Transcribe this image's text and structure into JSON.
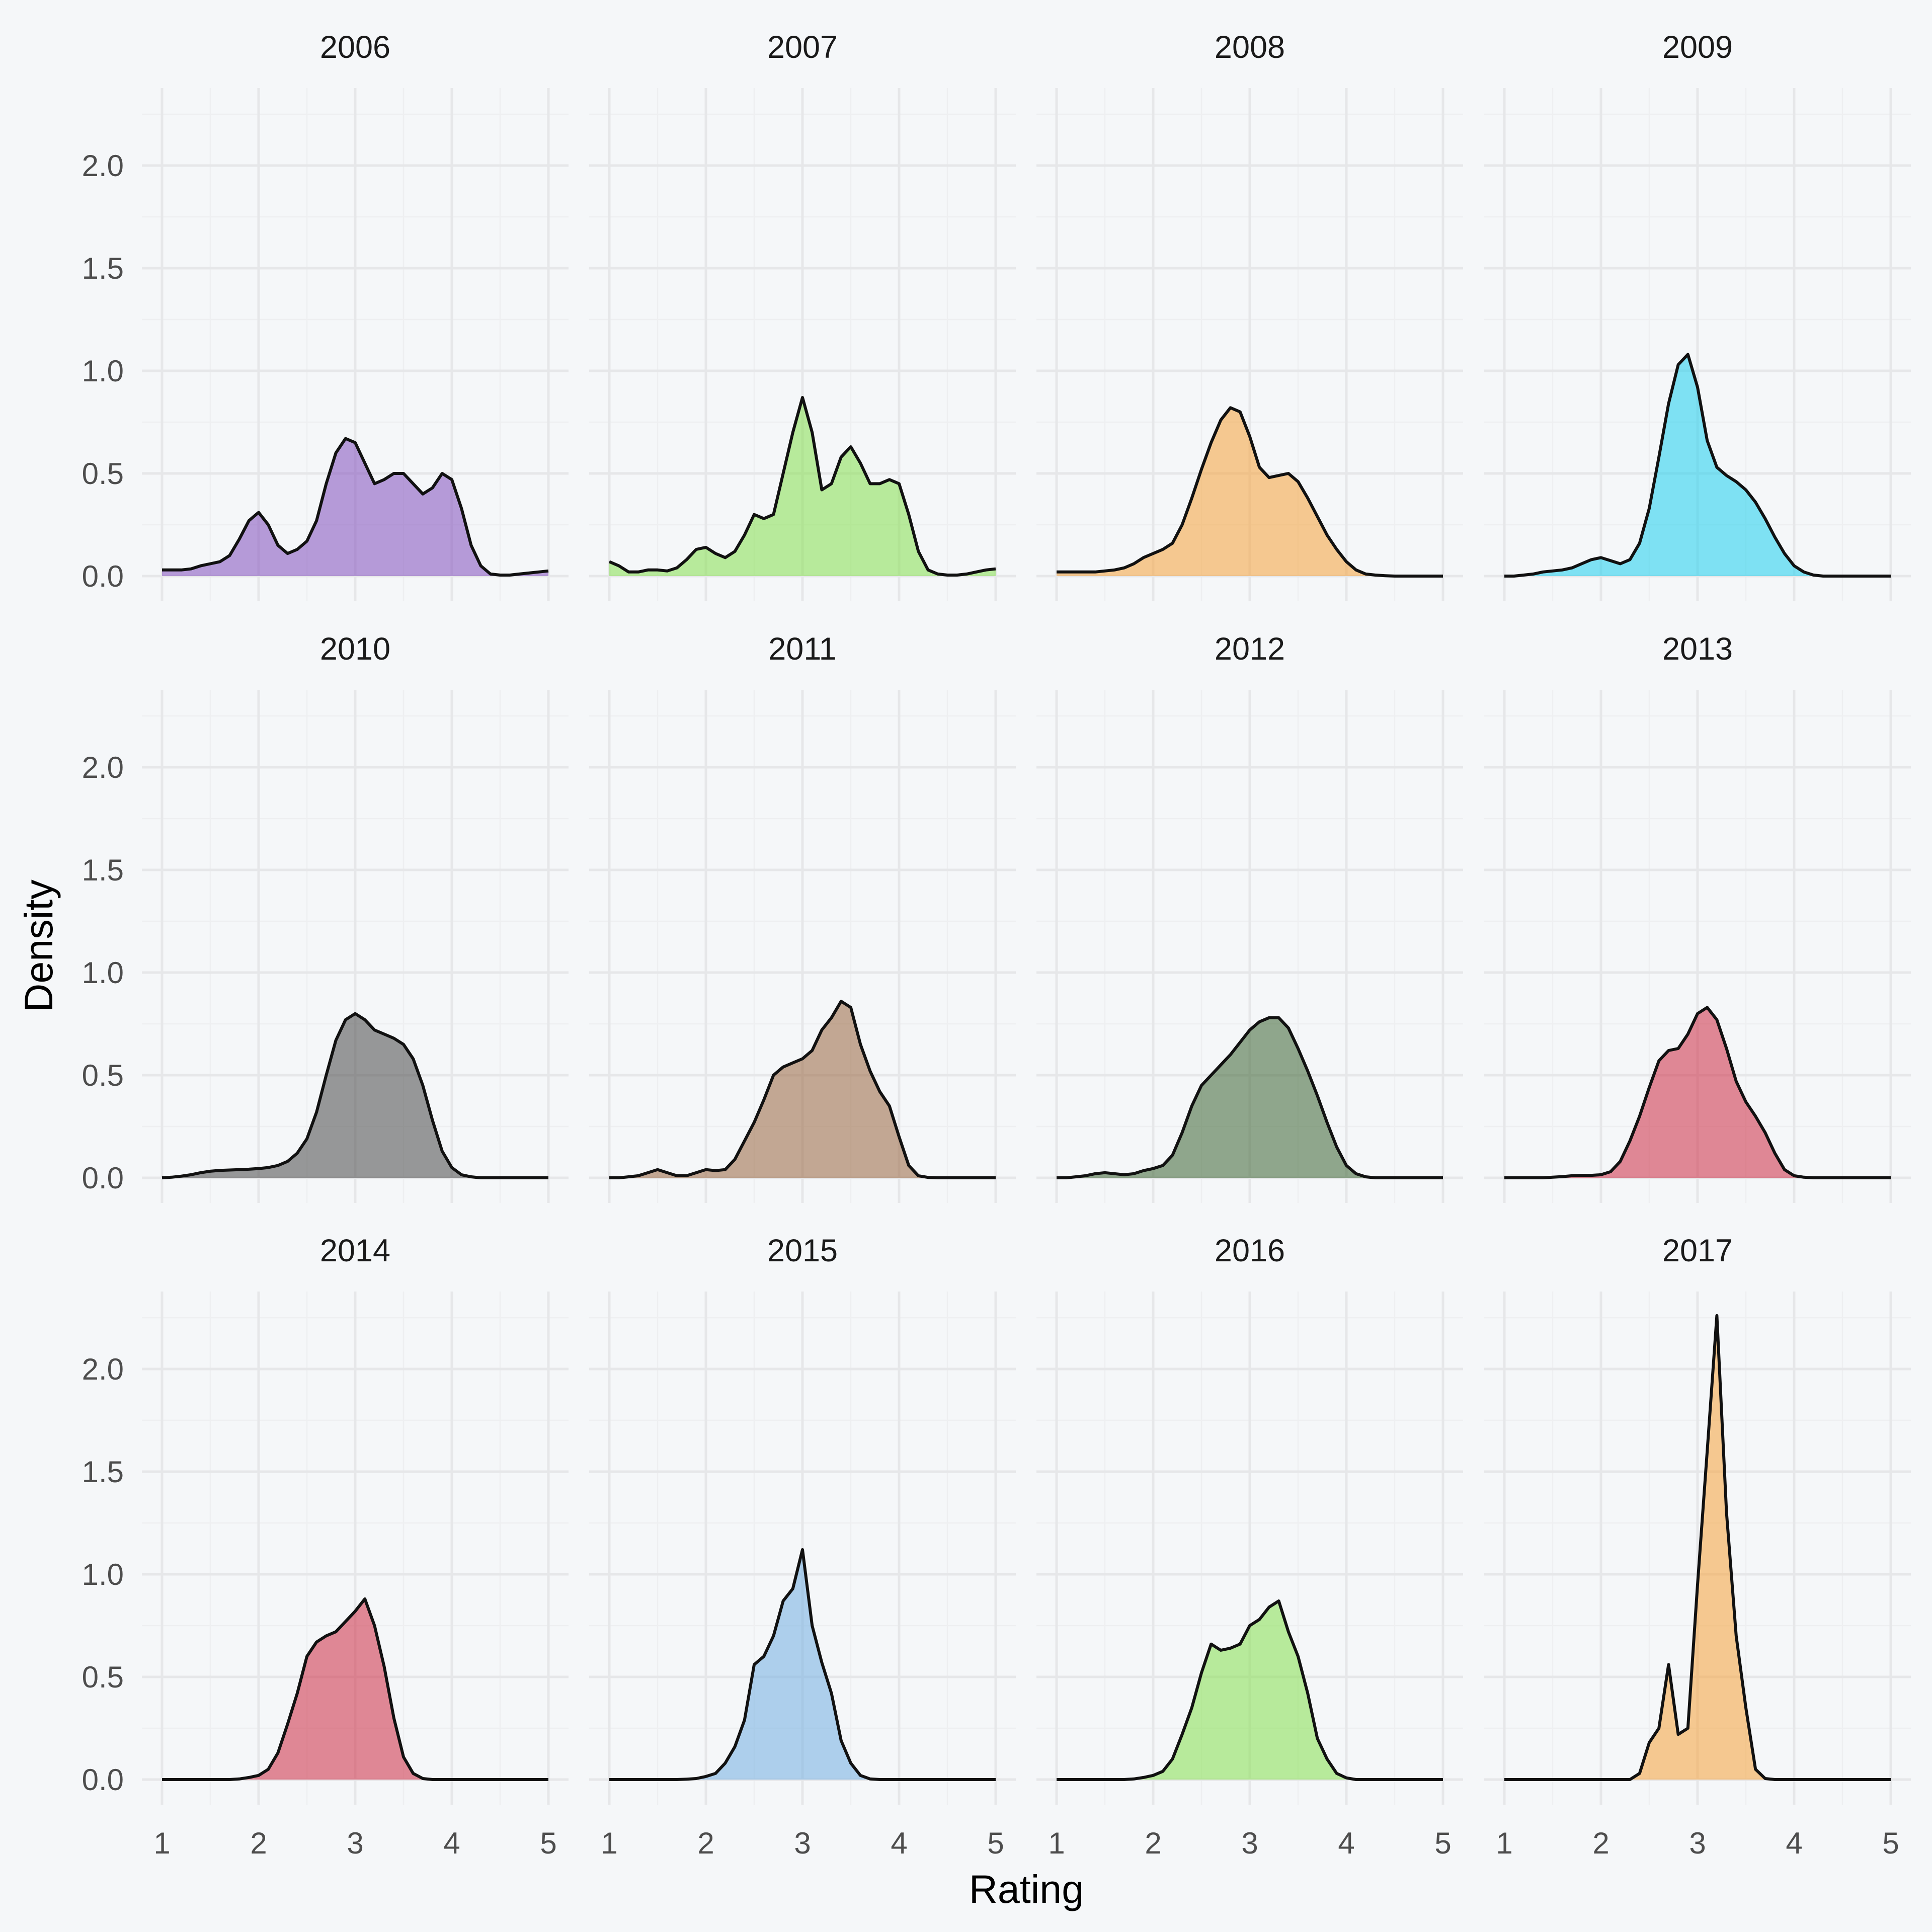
{
  "chart_data": {
    "type": "area",
    "subtype": "faceted-density",
    "xlabel": "Rating",
    "ylabel": "Density",
    "xlim": [
      1,
      5
    ],
    "ylim": [
      0,
      2.3
    ],
    "x_ticks": [
      1,
      2,
      3,
      4,
      5
    ],
    "x_tick_labels": [
      "1",
      "2",
      "3",
      "4",
      "5"
    ],
    "y_ticks": [
      0,
      0.5,
      1,
      1.5,
      2
    ],
    "y_tick_labels": [
      "0.0",
      "0.5",
      "1.0",
      "1.5",
      "2.0"
    ],
    "grid": true,
    "facet_layout": {
      "rows": 3,
      "cols": 4
    },
    "fill_opacity": 0.6,
    "panels": [
      {
        "label": "2006",
        "color": "#8a5cc2",
        "x": [
          1,
          1.1,
          1.2,
          1.3,
          1.4,
          1.5,
          1.6,
          1.7,
          1.8,
          1.9,
          2,
          2.1,
          2.2,
          2.3,
          2.4,
          2.5,
          2.6,
          2.7,
          2.8,
          2.9,
          3,
          3.1,
          3.2,
          3.3,
          3.4,
          3.5,
          3.6,
          3.7,
          3.8,
          3.9,
          4,
          4.1,
          4.2,
          4.3,
          4.4,
          4.5,
          4.6,
          4.7,
          4.8,
          4.9,
          5
        ],
        "y": [
          0.03,
          0.03,
          0.03,
          0.035,
          0.05,
          0.06,
          0.07,
          0.1,
          0.18,
          0.27,
          0.31,
          0.25,
          0.15,
          0.11,
          0.13,
          0.17,
          0.27,
          0.45,
          0.6,
          0.67,
          0.65,
          0.55,
          0.45,
          0.47,
          0.5,
          0.5,
          0.45,
          0.4,
          0.43,
          0.5,
          0.47,
          0.33,
          0.15,
          0.05,
          0.01,
          0.005,
          0.005,
          0.01,
          0.015,
          0.02,
          0.025
        ]
      },
      {
        "label": "2007",
        "color": "#8de15c",
        "x": [
          1,
          1.1,
          1.2,
          1.3,
          1.4,
          1.5,
          1.6,
          1.7,
          1.8,
          1.9,
          2,
          2.1,
          2.2,
          2.3,
          2.4,
          2.5,
          2.6,
          2.7,
          2.8,
          2.9,
          3,
          3.1,
          3.2,
          3.3,
          3.4,
          3.5,
          3.6,
          3.7,
          3.8,
          3.9,
          4,
          4.1,
          4.2,
          4.3,
          4.4,
          4.5,
          4.6,
          4.7,
          4.8,
          4.9,
          5
        ],
        "y": [
          0.07,
          0.05,
          0.02,
          0.02,
          0.03,
          0.03,
          0.025,
          0.04,
          0.08,
          0.13,
          0.14,
          0.11,
          0.09,
          0.12,
          0.2,
          0.3,
          0.28,
          0.3,
          0.5,
          0.7,
          0.87,
          0.7,
          0.42,
          0.45,
          0.58,
          0.63,
          0.55,
          0.45,
          0.45,
          0.47,
          0.45,
          0.3,
          0.12,
          0.03,
          0.01,
          0.005,
          0.005,
          0.01,
          0.02,
          0.03,
          0.035
        ]
      },
      {
        "label": "2008",
        "color": "#f5a84a",
        "x": [
          1,
          1.1,
          1.2,
          1.3,
          1.4,
          1.5,
          1.6,
          1.7,
          1.8,
          1.9,
          2,
          2.1,
          2.2,
          2.3,
          2.4,
          2.5,
          2.6,
          2.7,
          2.8,
          2.9,
          3,
          3.1,
          3.2,
          3.3,
          3.4,
          3.5,
          3.6,
          3.7,
          3.8,
          3.9,
          4,
          4.1,
          4.2,
          4.3,
          4.4,
          4.5,
          4.6,
          4.7,
          4.8,
          4.9,
          5
        ],
        "y": [
          0.02,
          0.02,
          0.02,
          0.02,
          0.02,
          0.025,
          0.03,
          0.04,
          0.06,
          0.09,
          0.11,
          0.13,
          0.16,
          0.25,
          0.38,
          0.52,
          0.65,
          0.76,
          0.82,
          0.8,
          0.68,
          0.53,
          0.48,
          0.49,
          0.5,
          0.46,
          0.38,
          0.29,
          0.2,
          0.13,
          0.07,
          0.03,
          0.01,
          0.005,
          0.002,
          0,
          0,
          0,
          0,
          0,
          0
        ]
      },
      {
        "label": "2009",
        "color": "#2fd2ee",
        "x": [
          1,
          1.1,
          1.2,
          1.3,
          1.4,
          1.5,
          1.6,
          1.7,
          1.8,
          1.9,
          2,
          2.1,
          2.2,
          2.3,
          2.4,
          2.5,
          2.6,
          2.7,
          2.8,
          2.9,
          3,
          3.1,
          3.2,
          3.3,
          3.4,
          3.5,
          3.6,
          3.7,
          3.8,
          3.9,
          4,
          4.1,
          4.2,
          4.3,
          4.4,
          4.5,
          4.6,
          4.7,
          4.8,
          4.9,
          5
        ],
        "y": [
          0,
          0,
          0.005,
          0.01,
          0.02,
          0.025,
          0.03,
          0.04,
          0.06,
          0.08,
          0.09,
          0.075,
          0.06,
          0.08,
          0.16,
          0.33,
          0.58,
          0.84,
          1.03,
          1.08,
          0.92,
          0.66,
          0.53,
          0.49,
          0.46,
          0.42,
          0.36,
          0.28,
          0.19,
          0.11,
          0.05,
          0.02,
          0.005,
          0,
          0,
          0,
          0,
          0,
          0,
          0,
          0
        ]
      },
      {
        "label": "2010",
        "color": "#575757",
        "x": [
          1,
          1.1,
          1.2,
          1.3,
          1.4,
          1.5,
          1.6,
          1.7,
          1.8,
          1.9,
          2,
          2.1,
          2.2,
          2.3,
          2.4,
          2.5,
          2.6,
          2.7,
          2.8,
          2.9,
          3,
          3.1,
          3.2,
          3.3,
          3.4,
          3.5,
          3.6,
          3.7,
          3.8,
          3.9,
          4,
          4.1,
          4.2,
          4.3,
          4.4,
          4.5,
          4.6,
          4.7,
          4.8,
          4.9,
          5
        ],
        "y": [
          0,
          0.003,
          0.008,
          0.015,
          0.025,
          0.032,
          0.036,
          0.038,
          0.04,
          0.042,
          0.045,
          0.05,
          0.06,
          0.08,
          0.12,
          0.19,
          0.32,
          0.5,
          0.67,
          0.77,
          0.8,
          0.77,
          0.72,
          0.7,
          0.68,
          0.65,
          0.58,
          0.45,
          0.28,
          0.13,
          0.05,
          0.015,
          0.005,
          0,
          0,
          0,
          0,
          0,
          0,
          0,
          0
        ]
      },
      {
        "label": "2011",
        "color": "#a0714f",
        "x": [
          1,
          1.1,
          1.2,
          1.3,
          1.4,
          1.5,
          1.6,
          1.7,
          1.8,
          1.9,
          2,
          2.1,
          2.2,
          2.3,
          2.4,
          2.5,
          2.6,
          2.7,
          2.8,
          2.9,
          3,
          3.1,
          3.2,
          3.3,
          3.4,
          3.5,
          3.6,
          3.7,
          3.8,
          3.9,
          4,
          4.1,
          4.2,
          4.3,
          4.4,
          4.5,
          4.6,
          4.7,
          4.8,
          4.9,
          5
        ],
        "y": [
          0,
          0,
          0.005,
          0.01,
          0.025,
          0.04,
          0.025,
          0.01,
          0.01,
          0.025,
          0.04,
          0.035,
          0.04,
          0.09,
          0.18,
          0.27,
          0.38,
          0.5,
          0.54,
          0.56,
          0.58,
          0.62,
          0.72,
          0.78,
          0.86,
          0.83,
          0.65,
          0.52,
          0.42,
          0.35,
          0.2,
          0.06,
          0.01,
          0.002,
          0,
          0,
          0,
          0,
          0,
          0,
          0
        ]
      },
      {
        "label": "2012",
        "color": "#4b7043",
        "x": [
          1,
          1.1,
          1.2,
          1.3,
          1.4,
          1.5,
          1.6,
          1.7,
          1.8,
          1.9,
          2,
          2.1,
          2.2,
          2.3,
          2.4,
          2.5,
          2.6,
          2.7,
          2.8,
          2.9,
          3,
          3.1,
          3.2,
          3.3,
          3.4,
          3.5,
          3.6,
          3.7,
          3.8,
          3.9,
          4,
          4.1,
          4.2,
          4.3,
          4.4,
          4.5,
          4.6,
          4.7,
          4.8,
          4.9,
          5
        ],
        "y": [
          0,
          0,
          0.005,
          0.01,
          0.02,
          0.025,
          0.02,
          0.015,
          0.02,
          0.035,
          0.045,
          0.06,
          0.11,
          0.22,
          0.35,
          0.45,
          0.5,
          0.55,
          0.6,
          0.66,
          0.72,
          0.76,
          0.78,
          0.78,
          0.73,
          0.63,
          0.52,
          0.4,
          0.27,
          0.15,
          0.06,
          0.02,
          0.005,
          0,
          0,
          0,
          0,
          0,
          0,
          0,
          0
        ]
      },
      {
        "label": "2013",
        "color": "#d13c52",
        "x": [
          1,
          1.1,
          1.2,
          1.3,
          1.4,
          1.5,
          1.6,
          1.7,
          1.8,
          1.9,
          2,
          2.1,
          2.2,
          2.3,
          2.4,
          2.5,
          2.6,
          2.7,
          2.8,
          2.9,
          3,
          3.1,
          3.2,
          3.3,
          3.4,
          3.5,
          3.6,
          3.7,
          3.8,
          3.9,
          4,
          4.1,
          4.2,
          4.3,
          4.4,
          4.5,
          4.6,
          4.7,
          4.8,
          4.9,
          5
        ],
        "y": [
          0,
          0,
          0,
          0,
          0,
          0.003,
          0.006,
          0.01,
          0.012,
          0.012,
          0.015,
          0.03,
          0.08,
          0.18,
          0.3,
          0.44,
          0.57,
          0.62,
          0.63,
          0.7,
          0.8,
          0.83,
          0.77,
          0.63,
          0.47,
          0.37,
          0.3,
          0.22,
          0.12,
          0.04,
          0.01,
          0.003,
          0,
          0,
          0,
          0,
          0,
          0,
          0,
          0,
          0
        ]
      },
      {
        "label": "2014",
        "color": "#d13c52",
        "x": [
          1,
          1.1,
          1.2,
          1.3,
          1.4,
          1.5,
          1.6,
          1.7,
          1.8,
          1.9,
          2,
          2.1,
          2.2,
          2.3,
          2.4,
          2.5,
          2.6,
          2.7,
          2.8,
          2.9,
          3,
          3.1,
          3.2,
          3.3,
          3.4,
          3.5,
          3.6,
          3.7,
          3.8,
          3.9,
          4,
          4.1,
          4.2,
          4.3,
          4.4,
          4.5,
          4.6,
          4.7,
          4.8,
          4.9,
          5
        ],
        "y": [
          0,
          0,
          0,
          0,
          0,
          0,
          0,
          0,
          0.003,
          0.01,
          0.02,
          0.05,
          0.13,
          0.27,
          0.42,
          0.6,
          0.67,
          0.7,
          0.72,
          0.77,
          0.82,
          0.88,
          0.75,
          0.55,
          0.3,
          0.11,
          0.03,
          0.005,
          0,
          0,
          0,
          0,
          0,
          0,
          0,
          0,
          0,
          0,
          0,
          0,
          0
        ]
      },
      {
        "label": "2015",
        "color": "#7db4e3",
        "x": [
          1,
          1.1,
          1.2,
          1.3,
          1.4,
          1.5,
          1.6,
          1.7,
          1.8,
          1.9,
          2,
          2.1,
          2.2,
          2.3,
          2.4,
          2.5,
          2.6,
          2.7,
          2.8,
          2.9,
          3,
          3.1,
          3.2,
          3.3,
          3.4,
          3.5,
          3.6,
          3.7,
          3.8,
          3.9,
          4,
          4.1,
          4.2,
          4.3,
          4.4,
          4.5,
          4.6,
          4.7,
          4.8,
          4.9,
          5
        ],
        "y": [
          0,
          0,
          0,
          0,
          0,
          0,
          0,
          0,
          0.002,
          0.005,
          0.015,
          0.03,
          0.08,
          0.16,
          0.29,
          0.56,
          0.6,
          0.7,
          0.87,
          0.93,
          1.12,
          0.75,
          0.57,
          0.42,
          0.19,
          0.08,
          0.02,
          0.003,
          0,
          0,
          0,
          0,
          0,
          0,
          0,
          0,
          0,
          0,
          0,
          0,
          0
        ]
      },
      {
        "label": "2016",
        "color": "#8de15c",
        "x": [
          1,
          1.1,
          1.2,
          1.3,
          1.4,
          1.5,
          1.6,
          1.7,
          1.8,
          1.9,
          2,
          2.1,
          2.2,
          2.3,
          2.4,
          2.5,
          2.6,
          2.7,
          2.8,
          2.9,
          3,
          3.1,
          3.2,
          3.3,
          3.4,
          3.5,
          3.6,
          3.7,
          3.8,
          3.9,
          4,
          4.1,
          4.2,
          4.3,
          4.4,
          4.5,
          4.6,
          4.7,
          4.8,
          4.9,
          5
        ],
        "y": [
          0,
          0,
          0,
          0,
          0,
          0,
          0,
          0,
          0.003,
          0.01,
          0.02,
          0.04,
          0.1,
          0.22,
          0.35,
          0.52,
          0.66,
          0.63,
          0.64,
          0.66,
          0.75,
          0.78,
          0.84,
          0.87,
          0.72,
          0.6,
          0.42,
          0.2,
          0.1,
          0.03,
          0.008,
          0,
          0,
          0,
          0,
          0,
          0,
          0,
          0,
          0,
          0
        ]
      },
      {
        "label": "2017",
        "color": "#f5a84a",
        "x": [
          1,
          1.1,
          1.2,
          1.3,
          1.4,
          1.5,
          1.6,
          1.7,
          1.8,
          1.9,
          2,
          2.1,
          2.2,
          2.3,
          2.4,
          2.5,
          2.6,
          2.7,
          2.8,
          2.9,
          3,
          3.1,
          3.2,
          3.3,
          3.4,
          3.5,
          3.6,
          3.7,
          3.8,
          3.9,
          4,
          4.1,
          4.2,
          4.3,
          4.4,
          4.5,
          4.6,
          4.7,
          4.8,
          4.9,
          5
        ],
        "y": [
          0,
          0,
          0,
          0,
          0,
          0,
          0,
          0,
          0,
          0,
          0,
          0,
          0,
          0,
          0.03,
          0.18,
          0.25,
          0.56,
          0.22,
          0.25,
          0.95,
          1.6,
          2.26,
          1.3,
          0.7,
          0.35,
          0.05,
          0.005,
          0,
          0,
          0,
          0,
          0,
          0,
          0,
          0,
          0,
          0,
          0,
          0,
          0
        ]
      }
    ]
  }
}
